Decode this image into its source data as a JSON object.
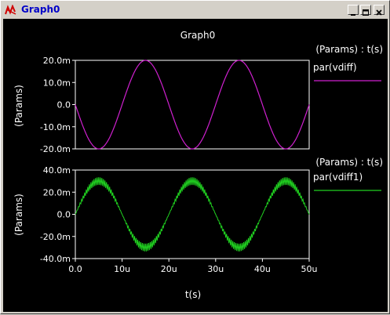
{
  "window": {
    "title": "Graph0",
    "app_icon": "waveform-icon",
    "controls": [
      "minimize-icon",
      "maximize-icon",
      "close-icon"
    ]
  },
  "graph": {
    "title": "Graph0",
    "background": "#000000",
    "axis_color": "#ffffff",
    "xlabel": "t(s)",
    "x_ticks": [
      "0.0",
      "10u",
      "20u",
      "30u",
      "40u",
      "50u"
    ],
    "x_tick_values": [
      0,
      10,
      20,
      30,
      40,
      50
    ],
    "xlim": [
      0,
      50
    ]
  },
  "chart_data": [
    {
      "type": "line",
      "legend_header": "(Params) : t(s)",
      "ylabel": "(Params)",
      "y_ticks": [
        "20.0m",
        "10.0m",
        "0.0",
        "-10.0m",
        "-20.0m"
      ],
      "y_tick_values": [
        20,
        10,
        0,
        -10,
        -20
      ],
      "ylim": [
        -20,
        20
      ],
      "series": [
        {
          "name": "par(vdiff)",
          "color": "#d020d0",
          "x": [
            0,
            2.5,
            5,
            7.5,
            10,
            12.5,
            15,
            17.5,
            20,
            22.5,
            25,
            27.5,
            30,
            32.5,
            35,
            37.5,
            40,
            42.5,
            45,
            47.5,
            50
          ],
          "y": [
            0,
            -14.1,
            -20,
            -14.1,
            0,
            14.1,
            20,
            14.1,
            0,
            -14.1,
            -20,
            -14.1,
            0,
            14.1,
            20,
            14.1,
            0,
            -14.1,
            -20,
            -14.1,
            0
          ]
        }
      ]
    },
    {
      "type": "line",
      "legend_header": "(Params) : t(s)",
      "ylabel": "(Params)",
      "y_ticks": [
        "40.0m",
        "20.0m",
        "0.0",
        "-20.0m",
        "-40.0m"
      ],
      "y_tick_values": [
        40,
        20,
        0,
        -20,
        -40
      ],
      "ylim": [
        -40,
        40
      ],
      "series": [
        {
          "name": "par(vdiff1)",
          "color": "#20d020",
          "envelope_upper": [
            0,
            23.3,
            33,
            23.3,
            0,
            -23.3,
            -27,
            -23.3,
            0,
            23.3,
            33,
            23.3,
            0,
            -23.3,
            -27,
            -23.3,
            0,
            23.3,
            33,
            23.3,
            0
          ],
          "envelope_lower": [
            0,
            17,
            27,
            17,
            0,
            -17,
            -34,
            -17,
            0,
            17,
            27,
            17,
            0,
            -17,
            -34,
            -17,
            0,
            17,
            27,
            17,
            0
          ],
          "x": [
            0,
            2.5,
            5,
            7.5,
            10,
            12.5,
            15,
            17.5,
            20,
            22.5,
            25,
            27.5,
            30,
            32.5,
            35,
            37.5,
            40,
            42.5,
            45,
            47.5,
            50
          ]
        }
      ]
    }
  ]
}
